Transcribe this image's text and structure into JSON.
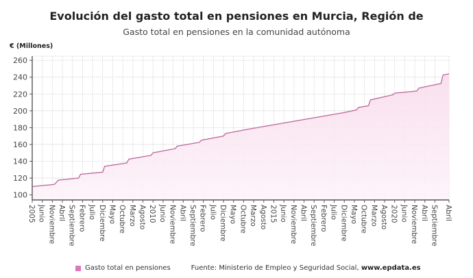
{
  "title": "Evolución del gasto total en pensiones en Murcia, Región de",
  "subtitle": "Gasto total en pensiones en la comunidad autónoma",
  "legend": {
    "label": "Gasto total en pensiones"
  },
  "source": {
    "text": "Fuente: Ministerio de Empleo y Seguridad Social, ",
    "site": "www.epdata.es"
  },
  "colors": {
    "line": "#c0709f",
    "fill": "#fbeaf4",
    "legend_swatch": "#d97bb8",
    "grid": "#cccccc"
  },
  "chart_data": {
    "type": "area",
    "title": "Evolución del gasto total en pensiones en Murcia, Región de",
    "subtitle": "Gasto total en pensiones en la comunidad autónoma",
    "ylabel": "€ (Millones)",
    "ylim": [
      94,
      265
    ],
    "xlim": [
      "2005-01",
      "2022-04"
    ],
    "grid": true,
    "legend_position": "bottom",
    "y_ticks": [
      100,
      120,
      140,
      160,
      180,
      200,
      220,
      240,
      260
    ],
    "x_ticks": [
      {
        "date": "2005-01",
        "label": "2005"
      },
      {
        "date": "2005-06",
        "label": "Junio"
      },
      {
        "date": "2005-11",
        "label": "Noviembre"
      },
      {
        "date": "2006-04",
        "label": "Abril"
      },
      {
        "date": "2006-09",
        "label": "Septiembre"
      },
      {
        "date": "2007-02",
        "label": "Febrero"
      },
      {
        "date": "2007-07",
        "label": "Julio"
      },
      {
        "date": "2007-12",
        "label": "Diciembre"
      },
      {
        "date": "2008-05",
        "label": "Mayo"
      },
      {
        "date": "2008-10",
        "label": "Octubre"
      },
      {
        "date": "2009-03",
        "label": "Marzo"
      },
      {
        "date": "2009-08",
        "label": "Agosto"
      },
      {
        "date": "2010-01",
        "label": "2010"
      },
      {
        "date": "2010-06",
        "label": "Junio"
      },
      {
        "date": "2010-11",
        "label": "Noviembre"
      },
      {
        "date": "2011-04",
        "label": "Abril"
      },
      {
        "date": "2011-09",
        "label": "Septiembre"
      },
      {
        "date": "2012-02",
        "label": "Febrero"
      },
      {
        "date": "2012-07",
        "label": "Julio"
      },
      {
        "date": "2012-12",
        "label": "Diciembre"
      },
      {
        "date": "2013-05",
        "label": "Mayo"
      },
      {
        "date": "2013-10",
        "label": "Octubre"
      },
      {
        "date": "2014-03",
        "label": "Marzo"
      },
      {
        "date": "2014-08",
        "label": "Agosto"
      },
      {
        "date": "2015-01",
        "label": "2015"
      },
      {
        "date": "2015-06",
        "label": "Junio"
      },
      {
        "date": "2015-11",
        "label": "Noviembre"
      },
      {
        "date": "2016-04",
        "label": "Abril"
      },
      {
        "date": "2016-09",
        "label": "Septiembre"
      },
      {
        "date": "2017-02",
        "label": "Febrero"
      },
      {
        "date": "2017-07",
        "label": "Julio"
      },
      {
        "date": "2017-12",
        "label": "Diciembre"
      },
      {
        "date": "2018-05",
        "label": "Mayo"
      },
      {
        "date": "2018-10",
        "label": "Octubre"
      },
      {
        "date": "2019-03",
        "label": "Marzo"
      },
      {
        "date": "2019-08",
        "label": "Agosto"
      },
      {
        "date": "2020-01",
        "label": "2020"
      },
      {
        "date": "2020-06",
        "label": "Junio"
      },
      {
        "date": "2020-11",
        "label": "Noviembre"
      },
      {
        "date": "2021-04",
        "label": "Abril"
      },
      {
        "date": "2021-09",
        "label": "Septiembre"
      },
      {
        "date": "2022-04",
        "label": "Abril"
      }
    ],
    "series": [
      {
        "name": "Gasto total en pensiones",
        "points": [
          [
            "2005-01",
            110
          ],
          [
            "2005-12",
            112.5
          ],
          [
            "2006-02",
            117.5
          ],
          [
            "2006-12",
            120
          ],
          [
            "2007-01",
            124.5
          ],
          [
            "2007-12",
            127
          ],
          [
            "2008-01",
            134
          ],
          [
            "2008-12",
            138
          ],
          [
            "2009-01",
            142.5
          ],
          [
            "2009-12",
            147
          ],
          [
            "2010-01",
            150
          ],
          [
            "2010-12",
            155
          ],
          [
            "2011-01",
            158
          ],
          [
            "2011-12",
            162.5
          ],
          [
            "2012-01",
            165
          ],
          [
            "2012-12",
            170
          ],
          [
            "2013-01",
            173
          ],
          [
            "2013-12",
            178
          ],
          [
            "2014-12",
            183
          ],
          [
            "2015-12",
            188
          ],
          [
            "2016-12",
            193
          ],
          [
            "2017-12",
            198
          ],
          [
            "2018-06",
            201
          ],
          [
            "2018-07",
            204
          ],
          [
            "2018-12",
            206
          ],
          [
            "2019-01",
            213
          ],
          [
            "2019-12",
            219
          ],
          [
            "2020-01",
            221
          ],
          [
            "2020-12",
            223.5
          ],
          [
            "2021-01",
            227
          ],
          [
            "2021-12",
            232.5
          ],
          [
            "2022-01",
            242.5
          ],
          [
            "2022-04",
            244
          ]
        ]
      }
    ]
  }
}
